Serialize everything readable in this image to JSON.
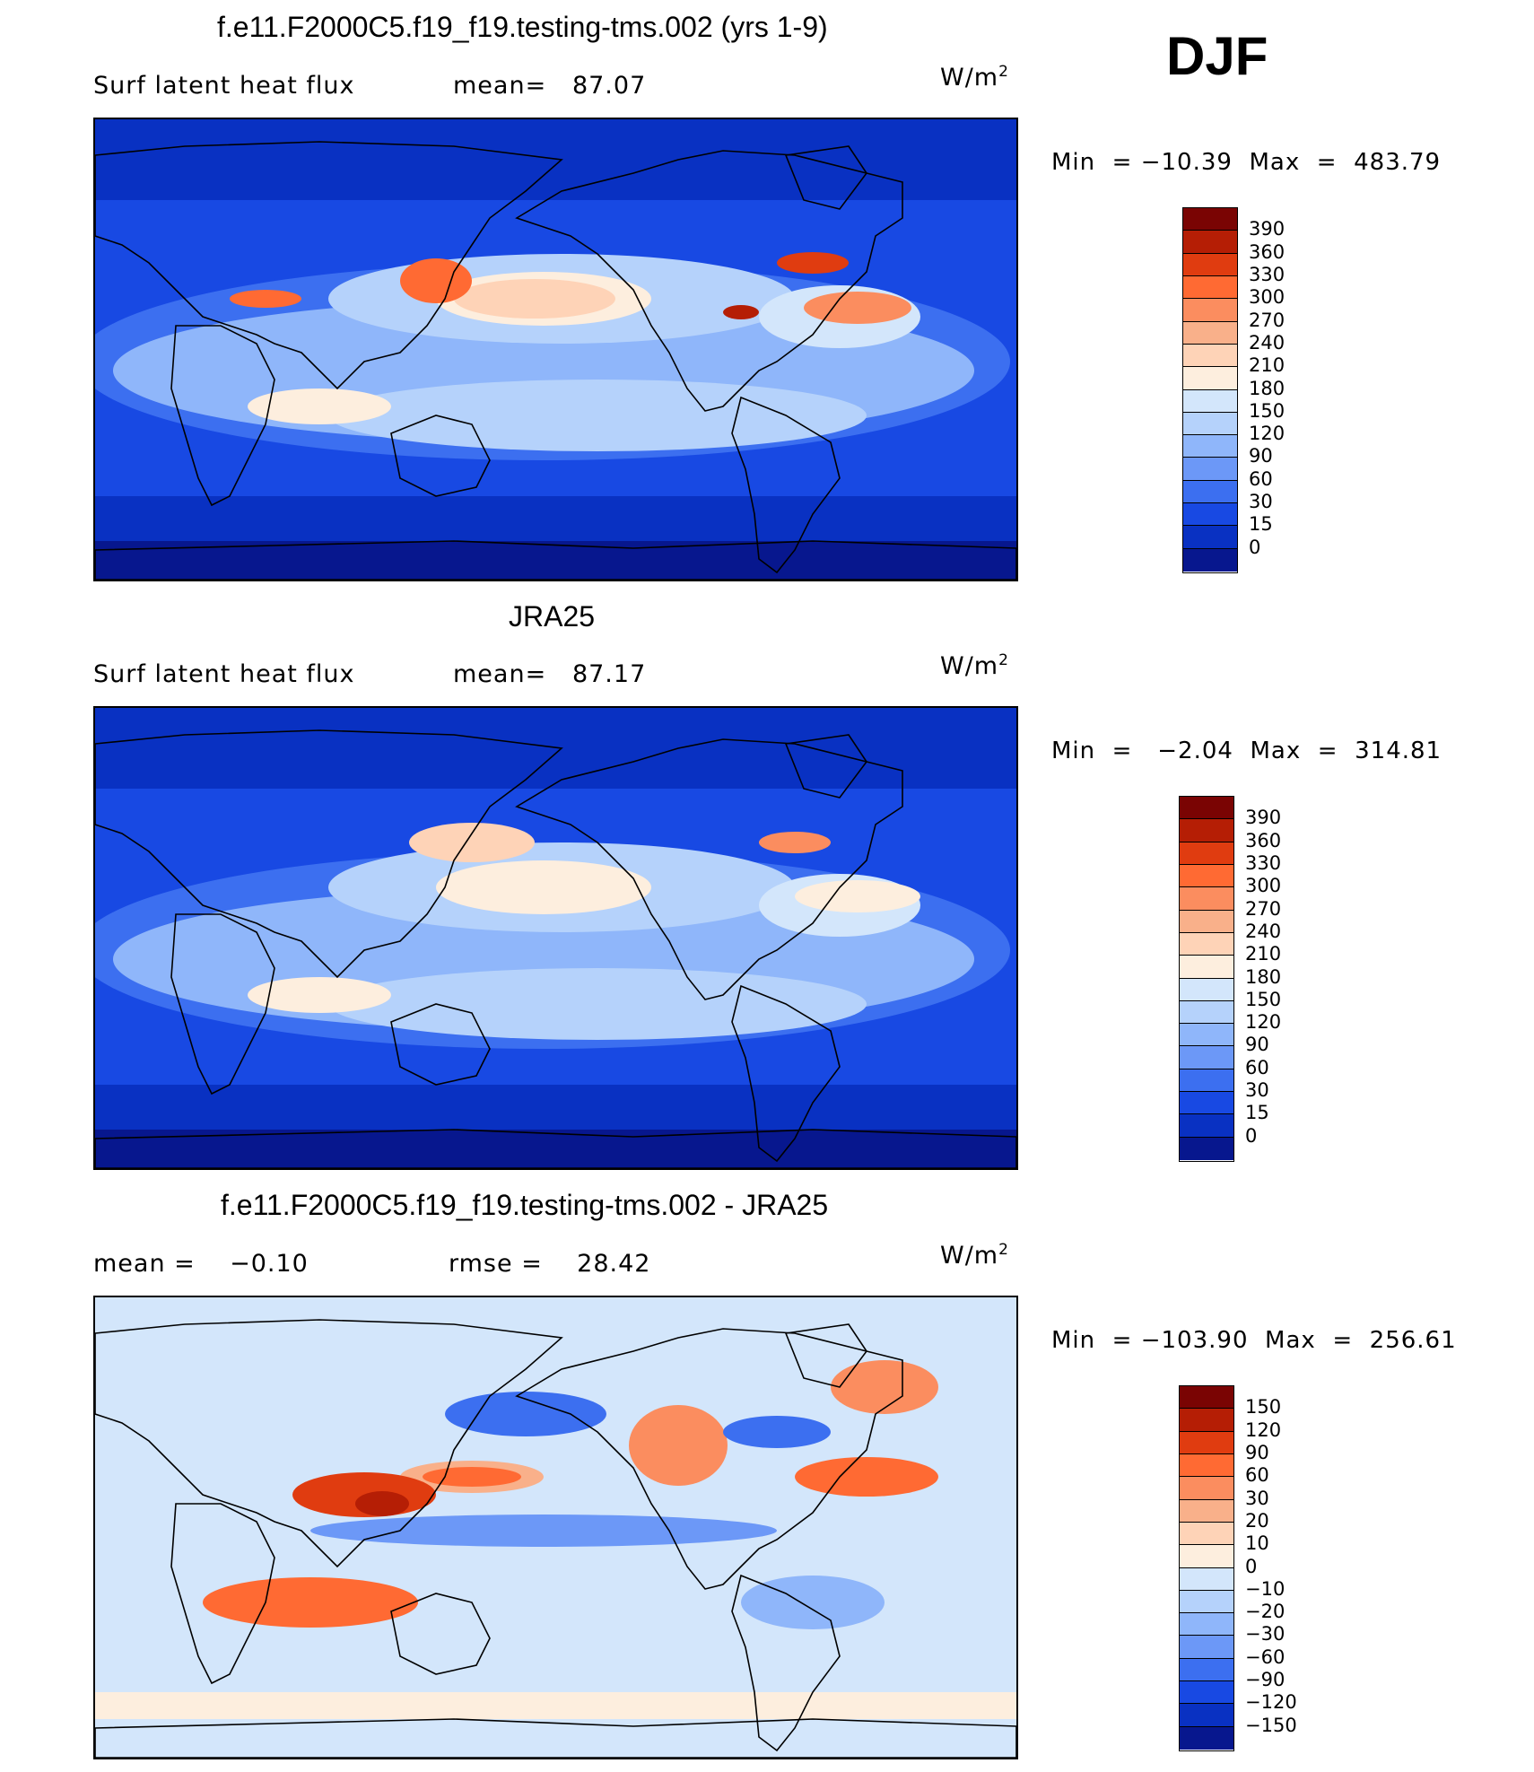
{
  "season": "DJF",
  "panels": [
    {
      "id": "model",
      "title": "f.e11.F2000C5.f19_f19.testing-tms.002 (yrs 1-9)",
      "left_label": "Surf latent heat flux",
      "stat_label": "mean=",
      "stat_value": "87.07",
      "units_base": "W/m",
      "units_exp": "2",
      "min_label": "Min",
      "eq": "=",
      "min_value": "−10.39",
      "max_label": "Max",
      "max_value": "483.79",
      "colorbar": {
        "labels": [
          "390",
          "360",
          "330",
          "300",
          "270",
          "240",
          "210",
          "180",
          "150",
          "120",
          "90",
          "60",
          "30",
          "15",
          "0"
        ],
        "colors": [
          "#7a0403",
          "#b51e05",
          "#e03c10",
          "#ff6a33",
          "#fb8d5f",
          "#f9b08a",
          "#fed3b7",
          "#fdeede",
          "#d3e6fb",
          "#b5d2fb",
          "#8fb6fa",
          "#6c98f7",
          "#3c6ff0",
          "#1849e3",
          "#0931c2",
          "#07178e"
        ]
      },
      "type": "abs"
    },
    {
      "id": "obs",
      "title": "JRA25",
      "left_label": "Surf latent heat flux",
      "stat_label": "mean=",
      "stat_value": "87.17",
      "units_base": "W/m",
      "units_exp": "2",
      "min_label": "Min",
      "eq": "=",
      "min_value": "−2.04",
      "max_label": "Max",
      "max_value": "314.81",
      "colorbar": {
        "labels": [
          "390",
          "360",
          "330",
          "300",
          "270",
          "240",
          "210",
          "180",
          "150",
          "120",
          "90",
          "60",
          "30",
          "15",
          "0"
        ],
        "colors": [
          "#7a0403",
          "#b51e05",
          "#e03c10",
          "#ff6a33",
          "#fb8d5f",
          "#f9b08a",
          "#fed3b7",
          "#fdeede",
          "#d3e6fb",
          "#b5d2fb",
          "#8fb6fa",
          "#6c98f7",
          "#3c6ff0",
          "#1849e3",
          "#0931c2",
          "#07178e"
        ]
      },
      "type": "abs"
    },
    {
      "id": "diff",
      "title": "f.e11.F2000C5.f19_f19.testing-tms.002 - JRA25",
      "left_label": "mean =",
      "left_value": "−0.10",
      "stat_label": "rmse =",
      "stat_value": "28.42",
      "units_base": "W/m",
      "units_exp": "2",
      "min_label": "Min",
      "eq": "=",
      "min_value": "−103.90",
      "max_label": "Max",
      "max_value": "256.61",
      "colorbar": {
        "labels": [
          "150",
          "120",
          "90",
          "60",
          "30",
          "20",
          "10",
          "0",
          "−10",
          "−20",
          "−30",
          "−60",
          "−90",
          "−120",
          "−150"
        ],
        "colors": [
          "#7a0403",
          "#b51e05",
          "#e03c10",
          "#ff6a33",
          "#fb8d5f",
          "#f9b08a",
          "#fed3b7",
          "#fdeede",
          "#d3e6fb",
          "#b5d2fb",
          "#8fb6fa",
          "#6c98f7",
          "#3c6ff0",
          "#1849e3",
          "#0931c2",
          "#07178e"
        ]
      },
      "type": "diff"
    }
  ]
}
